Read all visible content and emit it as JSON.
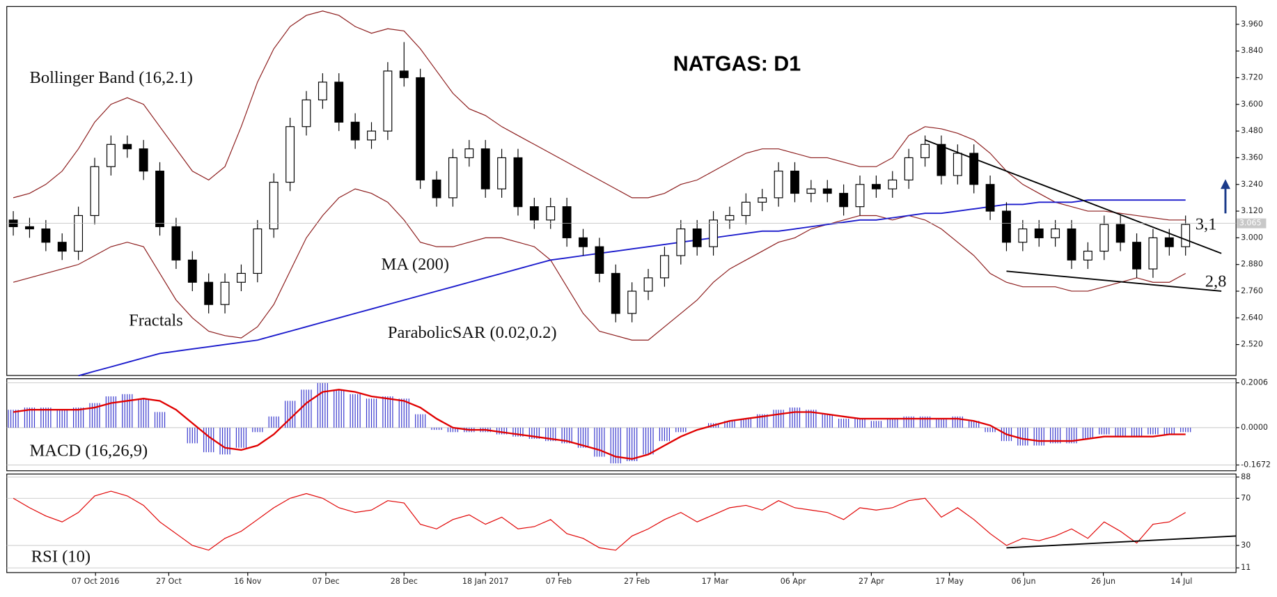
{
  "chart_data": [
    {
      "type": "candlestick",
      "title": "NATGAS: D1",
      "xlim": [
        -0.4,
        75.1
      ],
      "ylim": [
        2.381,
        4.04
      ],
      "xticks": [
        {
          "value": 5.05,
          "label": "07 Oct 2016"
        },
        {
          "value": 9.55,
          "label": "27 Oct"
        },
        {
          "value": 14.4,
          "label": "16 Nov"
        },
        {
          "value": 19.2,
          "label": "07 Dec"
        },
        {
          "value": 24,
          "label": "28 Dec"
        },
        {
          "value": 29,
          "label": "18 Jan 2017"
        },
        {
          "value": 33.5,
          "label": "07 Feb"
        },
        {
          "value": 38.3,
          "label": "27 Feb"
        },
        {
          "value": 43.1,
          "label": "17 Mar"
        },
        {
          "value": 47.9,
          "label": "06 Apr"
        },
        {
          "value": 52.7,
          "label": "27 Apr"
        },
        {
          "value": 57.5,
          "label": "17 May"
        },
        {
          "value": 62.05,
          "label": "06 Jun"
        },
        {
          "value": 66.95,
          "label": "26 Jun"
        },
        {
          "value": 71.75,
          "label": "14 Jul"
        }
      ],
      "yticks": [
        {
          "value": 2.52,
          "label": "2.520"
        },
        {
          "value": 2.64,
          "label": "2.640"
        },
        {
          "value": 2.76,
          "label": "2.760"
        },
        {
          "value": 2.88,
          "label": "2.880"
        },
        {
          "value": 3.0,
          "label": "3.000"
        },
        {
          "value": 3.12,
          "label": "3.120"
        },
        {
          "value": 3.24,
          "label": "3.240"
        },
        {
          "value": 3.36,
          "label": "3.360"
        },
        {
          "value": 3.48,
          "label": "3.480"
        },
        {
          "value": 3.6,
          "label": "3.600"
        },
        {
          "value": 3.72,
          "label": "3.720"
        },
        {
          "value": 3.84,
          "label": "3.840"
        },
        {
          "value": 3.96,
          "label": "3.960"
        }
      ],
      "open": [
        3.08,
        3.05,
        3.04,
        2.98,
        2.94,
        3.1,
        3.32,
        3.42,
        3.4,
        3.3,
        3.05,
        2.9,
        2.8,
        2.7,
        2.8,
        2.84,
        3.04,
        3.25,
        3.5,
        3.62,
        3.7,
        3.52,
        3.44,
        3.48,
        3.75,
        3.72,
        3.26,
        3.18,
        3.36,
        3.4,
        3.22,
        3.36,
        3.14,
        3.08,
        3.14,
        3.0,
        2.96,
        2.84,
        2.66,
        2.76,
        2.82,
        2.92,
        3.04,
        2.96,
        3.08,
        3.1,
        3.16,
        3.18,
        3.3,
        3.2,
        3.22,
        3.2,
        3.14,
        3.24,
        3.22,
        3.26,
        3.36,
        3.42,
        3.28,
        3.38,
        3.24,
        3.12,
        2.98,
        3.04,
        3.0,
        3.04,
        2.9,
        2.94,
        3.06,
        2.98,
        2.86,
        3.0,
        2.96
      ],
      "high": [
        3.12,
        3.09,
        3.08,
        3.02,
        3.14,
        3.36,
        3.46,
        3.46,
        3.44,
        3.34,
        3.09,
        2.94,
        2.84,
        2.84,
        2.88,
        3.08,
        3.29,
        3.54,
        3.66,
        3.74,
        3.74,
        3.56,
        3.52,
        3.79,
        3.88,
        3.76,
        3.3,
        3.4,
        3.44,
        3.44,
        3.4,
        3.4,
        3.18,
        3.18,
        3.18,
        3.04,
        3.0,
        2.88,
        2.8,
        2.86,
        2.96,
        3.08,
        3.08,
        3.12,
        3.14,
        3.2,
        3.22,
        3.34,
        3.34,
        3.26,
        3.26,
        3.24,
        3.28,
        3.28,
        3.3,
        3.4,
        3.46,
        3.46,
        3.42,
        3.42,
        3.28,
        3.16,
        3.08,
        3.08,
        3.08,
        3.08,
        2.98,
        3.1,
        3.1,
        3.02,
        3.04,
        3.04,
        3.1
      ],
      "low": [
        3.01,
        3.0,
        2.94,
        2.9,
        2.9,
        3.06,
        3.28,
        3.36,
        3.26,
        3.01,
        2.86,
        2.76,
        2.66,
        2.66,
        2.76,
        2.8,
        3.0,
        3.21,
        3.46,
        3.58,
        3.48,
        3.4,
        3.4,
        3.44,
        3.68,
        3.22,
        3.14,
        3.14,
        3.32,
        3.18,
        3.18,
        3.1,
        3.04,
        3.04,
        2.96,
        2.92,
        2.8,
        2.62,
        2.62,
        2.72,
        2.78,
        2.88,
        2.92,
        2.92,
        3.04,
        3.06,
        3.12,
        3.14,
        3.16,
        3.16,
        3.16,
        3.1,
        3.1,
        3.18,
        3.18,
        3.22,
        3.32,
        3.24,
        3.24,
        3.2,
        3.08,
        2.94,
        2.94,
        2.96,
        2.96,
        2.86,
        2.86,
        2.9,
        2.94,
        2.82,
        2.82,
        2.92,
        2.92
      ],
      "close": [
        3.05,
        3.04,
        2.98,
        2.94,
        3.1,
        3.32,
        3.42,
        3.4,
        3.3,
        3.05,
        2.9,
        2.8,
        2.7,
        2.8,
        2.84,
        3.04,
        3.25,
        3.5,
        3.62,
        3.7,
        3.52,
        3.44,
        3.48,
        3.75,
        3.72,
        3.26,
        3.18,
        3.36,
        3.4,
        3.22,
        3.36,
        3.14,
        3.08,
        3.14,
        3.0,
        2.96,
        2.84,
        2.66,
        2.76,
        2.82,
        2.92,
        3.04,
        2.96,
        3.08,
        3.1,
        3.16,
        3.18,
        3.3,
        3.2,
        3.22,
        3.2,
        3.14,
        3.24,
        3.22,
        3.26,
        3.36,
        3.42,
        3.28,
        3.38,
        3.24,
        3.12,
        2.98,
        3.04,
        3.0,
        3.04,
        2.9,
        2.94,
        3.06,
        2.98,
        2.86,
        3.0,
        2.96,
        3.06
      ],
      "series": [
        {
          "name": "MA (200)",
          "color": "#1a1acc",
          "values": [
            null,
            null,
            null,
            null,
            2.38,
            2.4,
            2.42,
            2.44,
            2.46,
            2.48,
            2.49,
            2.5,
            2.51,
            2.52,
            2.53,
            2.54,
            2.56,
            2.58,
            2.6,
            2.62,
            2.64,
            2.66,
            2.68,
            2.7,
            2.72,
            2.74,
            2.76,
            2.78,
            2.8,
            2.82,
            2.84,
            2.86,
            2.88,
            2.9,
            2.91,
            2.92,
            2.93,
            2.94,
            2.95,
            2.96,
            2.97,
            2.98,
            2.99,
            3.0,
            3.01,
            3.02,
            3.03,
            3.03,
            3.04,
            3.05,
            3.06,
            3.07,
            3.08,
            3.08,
            3.09,
            3.1,
            3.11,
            3.11,
            3.12,
            3.13,
            3.14,
            3.15,
            3.15,
            3.16,
            3.16,
            3.16,
            3.17,
            3.17,
            3.17,
            3.17,
            3.17,
            3.17,
            3.17
          ]
        },
        {
          "name": "Bollinger Band (16,2.1)",
          "color": "#8b1a1a",
          "upper": [
            3.18,
            3.2,
            3.24,
            3.3,
            3.4,
            3.52,
            3.6,
            3.63,
            3.6,
            3.5,
            3.4,
            3.3,
            3.26,
            3.32,
            3.5,
            3.7,
            3.85,
            3.95,
            4.0,
            4.02,
            4.0,
            3.95,
            3.92,
            3.94,
            3.93,
            3.85,
            3.75,
            3.65,
            3.58,
            3.55,
            3.5,
            3.46,
            3.42,
            3.38,
            3.34,
            3.3,
            3.26,
            3.22,
            3.18,
            3.18,
            3.2,
            3.24,
            3.26,
            3.3,
            3.34,
            3.38,
            3.4,
            3.4,
            3.38,
            3.36,
            3.36,
            3.34,
            3.32,
            3.32,
            3.36,
            3.46,
            3.5,
            3.49,
            3.47,
            3.44,
            3.38,
            3.3,
            3.24,
            3.2,
            3.16,
            3.14,
            3.12,
            3.12,
            3.11,
            3.1,
            3.09,
            3.08,
            3.08
          ],
          "lower": [
            2.8,
            2.82,
            2.84,
            2.86,
            2.88,
            2.92,
            2.96,
            2.98,
            2.96,
            2.84,
            2.72,
            2.64,
            2.58,
            2.56,
            2.55,
            2.6,
            2.7,
            2.85,
            3.0,
            3.1,
            3.18,
            3.22,
            3.2,
            3.16,
            3.08,
            2.98,
            2.96,
            2.96,
            2.98,
            3.0,
            3.0,
            2.98,
            2.96,
            2.9,
            2.78,
            2.66,
            2.58,
            2.56,
            2.54,
            2.54,
            2.6,
            2.66,
            2.72,
            2.8,
            2.86,
            2.9,
            2.94,
            2.98,
            3.0,
            3.04,
            3.06,
            3.08,
            3.1,
            3.1,
            3.08,
            3.1,
            3.08,
            3.04,
            2.98,
            2.92,
            2.84,
            2.8,
            2.78,
            2.78,
            2.78,
            2.76,
            2.76,
            2.78,
            2.8,
            2.82,
            2.8,
            2.8,
            2.84
          ]
        }
      ],
      "trendlines": [
        {
          "x": [
            56,
            74.2
          ],
          "y": [
            3.44,
            2.93
          ]
        },
        {
          "x": [
            61,
            74.2
          ],
          "y": [
            2.85,
            2.76
          ]
        }
      ],
      "last_price": {
        "value": 3.065,
        "label": "3.065"
      },
      "annotations": [
        "Fractals",
        "ParabolicSAR (0.02,0.2)",
        "3,1",
        "2,8"
      ]
    },
    {
      "type": "bar",
      "title": "MACD (16,26,9)",
      "ylim": [
        -0.193,
        0.219
      ],
      "grid": true,
      "yticks": [
        -0.1672,
        {
          "value": 0,
          "label": "0.0000"
        },
        0.2006
      ],
      "series": [
        {
          "color": "#3333cc",
          "values": [
            0.08,
            0.09,
            0.09,
            0.08,
            0.09,
            0.11,
            0.14,
            0.15,
            0.13,
            0.07,
            0.0,
            -0.07,
            -0.11,
            -0.12,
            -0.09,
            -0.02,
            0.05,
            0.12,
            0.17,
            0.2,
            0.17,
            0.15,
            0.13,
            0.14,
            0.13,
            0.06,
            -0.01,
            -0.02,
            -0.02,
            -0.02,
            -0.03,
            -0.04,
            -0.05,
            -0.06,
            -0.07,
            -0.09,
            -0.13,
            -0.16,
            -0.15,
            -0.12,
            -0.06,
            -0.02,
            0.0,
            0.02,
            0.03,
            0.04,
            0.06,
            0.08,
            0.09,
            0.08,
            0.06,
            0.04,
            0.04,
            0.03,
            0.04,
            0.05,
            0.05,
            0.04,
            0.05,
            0.03,
            -0.02,
            -0.06,
            -0.08,
            -0.08,
            -0.07,
            -0.07,
            -0.05,
            -0.03,
            -0.04,
            -0.04,
            -0.03,
            -0.03,
            -0.02
          ]
        },
        {
          "type": "line",
          "color": "#e00000",
          "values": [
            0.07,
            0.08,
            0.08,
            0.08,
            0.08,
            0.09,
            0.11,
            0.12,
            0.13,
            0.12,
            0.08,
            0.02,
            -0.04,
            -0.09,
            -0.1,
            -0.08,
            -0.03,
            0.04,
            0.11,
            0.16,
            0.17,
            0.16,
            0.14,
            0.13,
            0.12,
            0.09,
            0.04,
            0.0,
            -0.01,
            -0.01,
            -0.02,
            -0.03,
            -0.04,
            -0.05,
            -0.06,
            -0.08,
            -0.1,
            -0.13,
            -0.14,
            -0.12,
            -0.08,
            -0.04,
            -0.01,
            0.01,
            0.03,
            0.04,
            0.05,
            0.06,
            0.07,
            0.07,
            0.06,
            0.05,
            0.04,
            0.04,
            0.04,
            0.04,
            0.04,
            0.04,
            0.04,
            0.03,
            0.01,
            -0.03,
            -0.05,
            -0.06,
            -0.06,
            -0.06,
            -0.05,
            -0.04,
            -0.04,
            -0.04,
            -0.04,
            -0.03,
            -0.03
          ]
        }
      ]
    },
    {
      "type": "line",
      "title": "RSI (10)",
      "ylim": [
        7,
        90.6
      ],
      "grid": true,
      "yticks": [
        11,
        30,
        70,
        88
      ],
      "color": "#e00000",
      "values": [
        70,
        62,
        55,
        50,
        58,
        72,
        76,
        72,
        64,
        50,
        40,
        30,
        26,
        36,
        42,
        52,
        62,
        70,
        74,
        70,
        62,
        58,
        60,
        68,
        66,
        48,
        44,
        52,
        56,
        48,
        54,
        44,
        46,
        52,
        40,
        36,
        28,
        26,
        38,
        44,
        52,
        58,
        50,
        56,
        62,
        64,
        60,
        68,
        62,
        60,
        58,
        52,
        62,
        60,
        62,
        68,
        70,
        54,
        62,
        52,
        40,
        30,
        36,
        34,
        38,
        44,
        36,
        50,
        42,
        32,
        48,
        50,
        58
      ],
      "trendlines": [
        {
          "x": [
            61,
            75.1
          ],
          "y": [
            28,
            38
          ]
        }
      ]
    }
  ]
}
